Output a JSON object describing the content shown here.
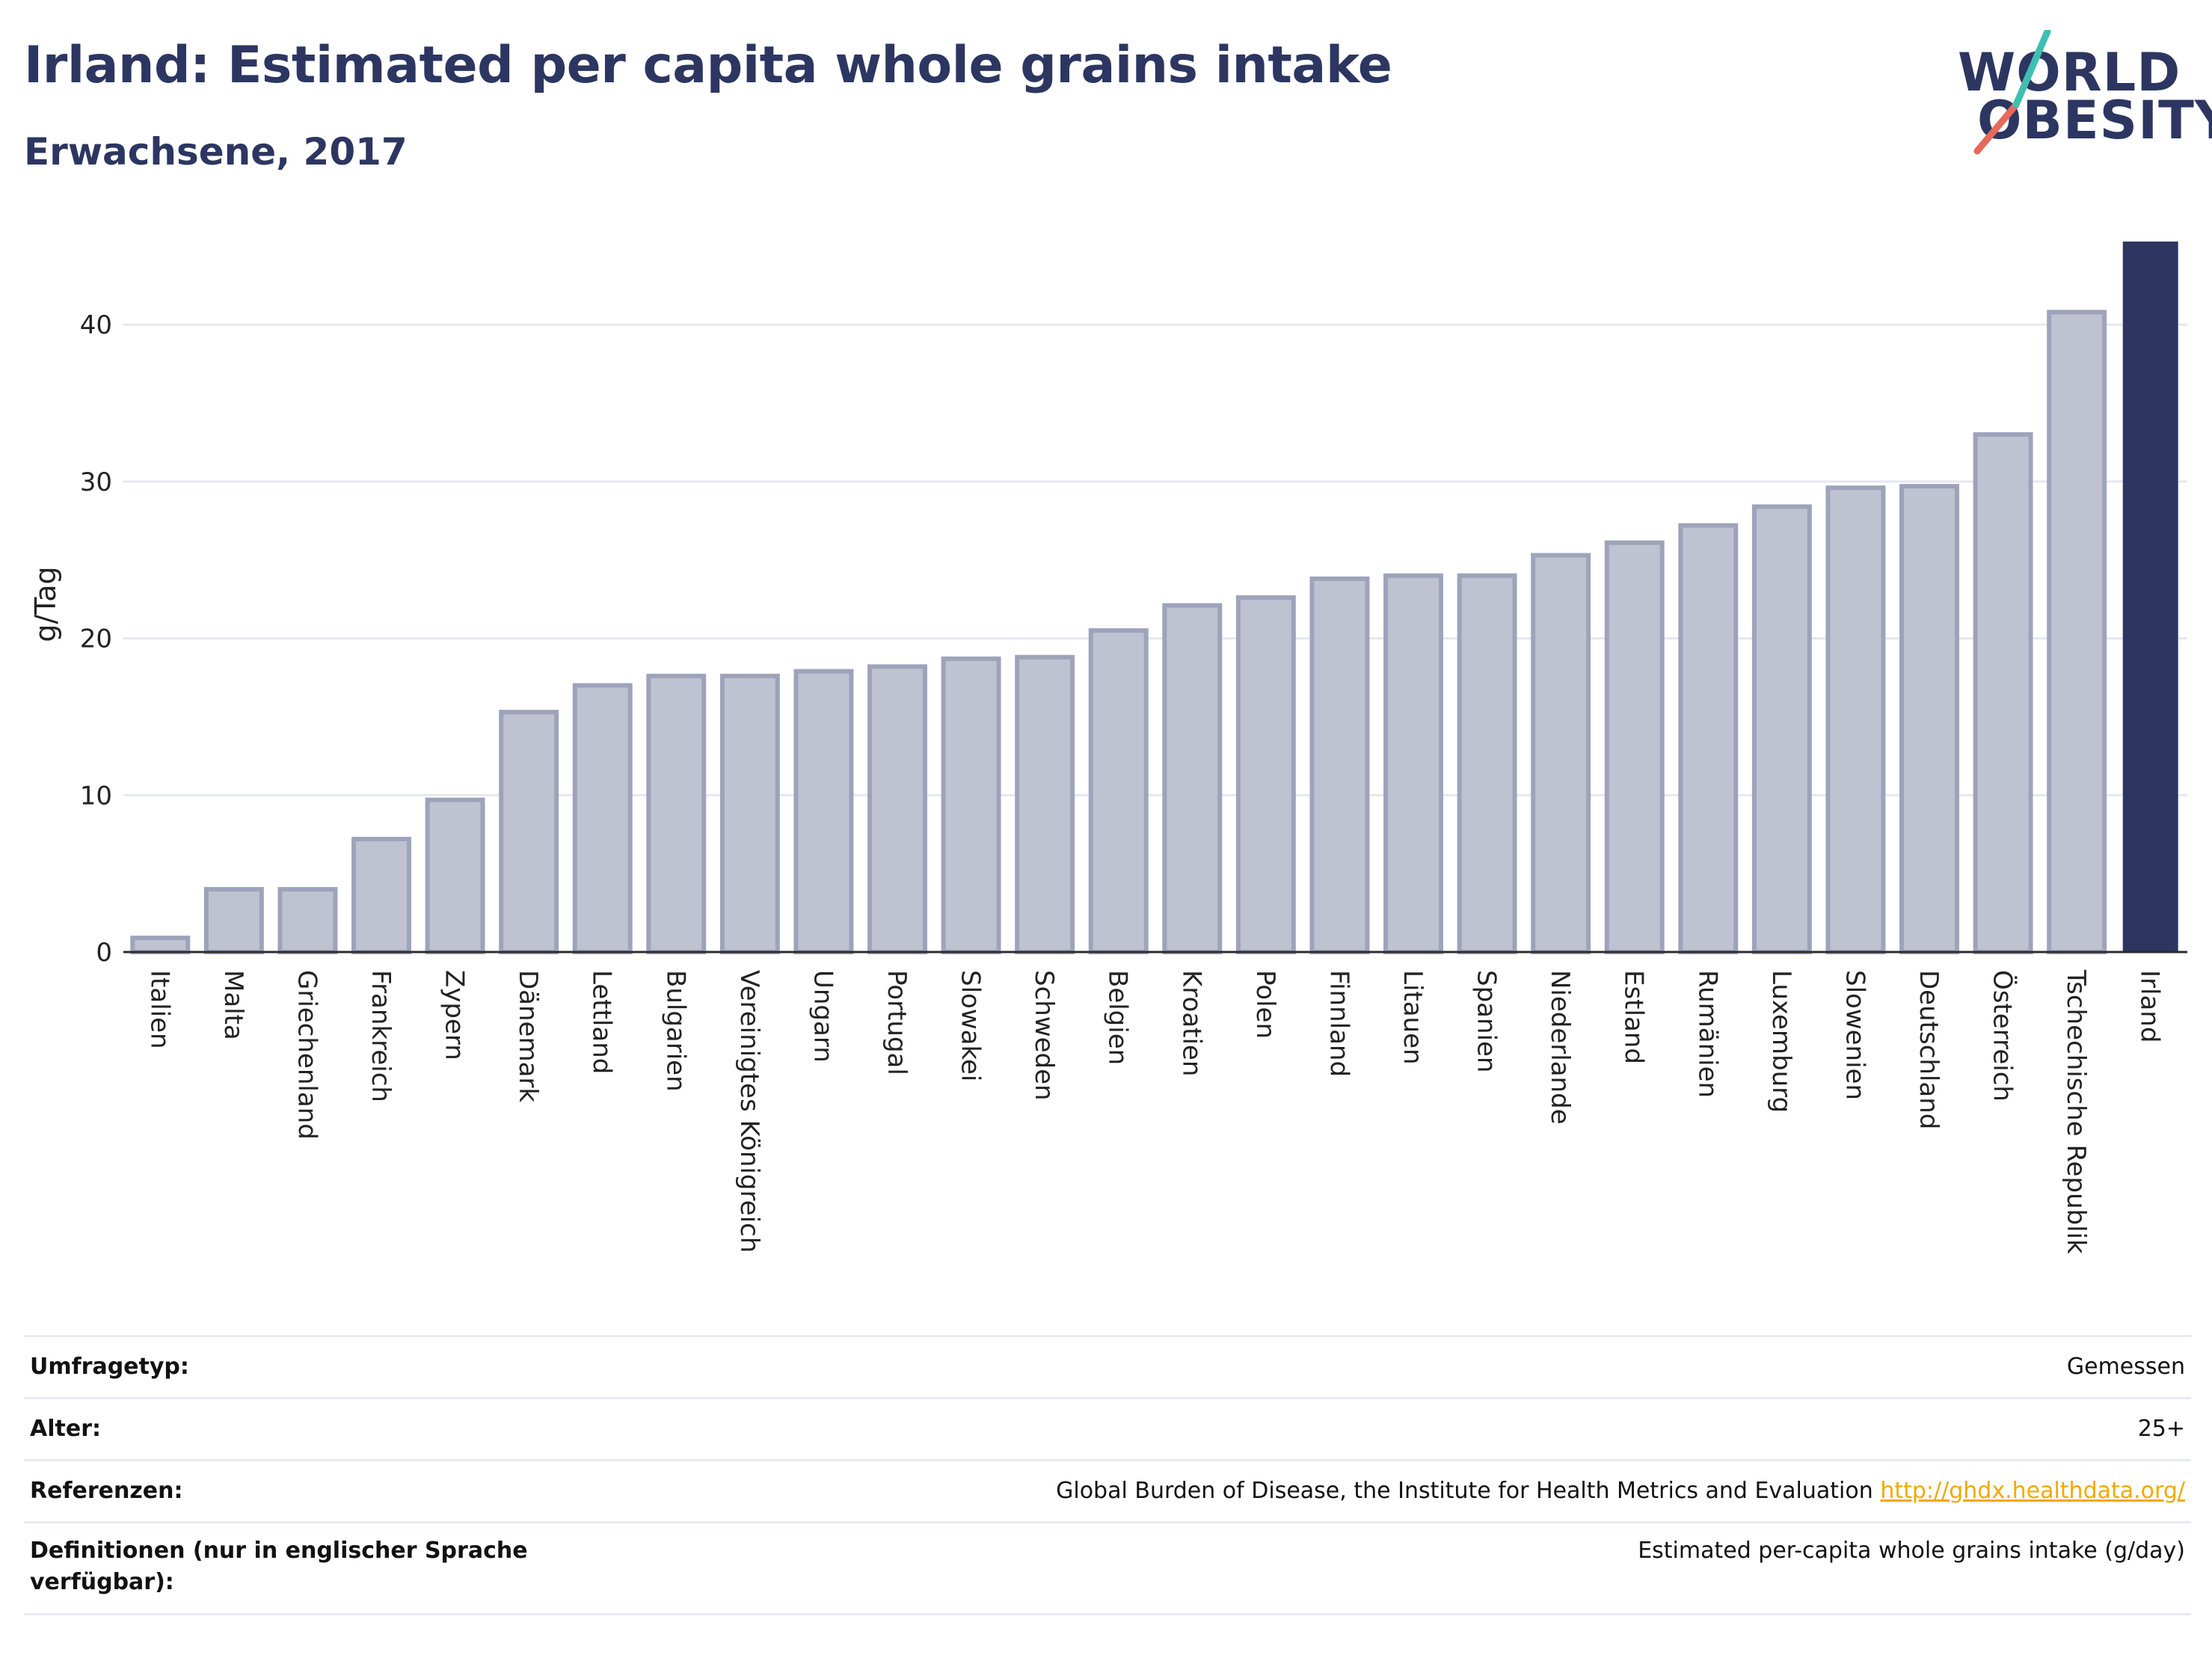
{
  "header": {
    "title": "Irland: Estimated per capita whole grains intake",
    "subtitle": "Erwachsene, 2017"
  },
  "logo": {
    "line1": "WORLD",
    "line2": "OBESITY"
  },
  "chart_data": {
    "type": "bar",
    "categories": [
      "Italien",
      "Malta",
      "Griechenland",
      "Frankreich",
      "Zypern",
      "Dänemark",
      "Lettland",
      "Bulgarien",
      "Vereinigtes Königreich",
      "Ungarn",
      "Portugal",
      "Slowakei",
      "Schweden",
      "Belgien",
      "Kroatien",
      "Polen",
      "Finnland",
      "Litauen",
      "Spanien",
      "Niederlande",
      "Estland",
      "Rumänien",
      "Luxemburg",
      "Slowenien",
      "Deutschland",
      "Österreich",
      "Tschechische Republik",
      "Irland"
    ],
    "values": [
      0.9,
      4.0,
      4.0,
      7.2,
      9.7,
      15.3,
      17.0,
      17.6,
      17.6,
      17.9,
      18.2,
      18.7,
      18.8,
      20.5,
      22.1,
      22.6,
      23.8,
      24.0,
      24.0,
      25.3,
      26.1,
      27.2,
      28.4,
      29.6,
      29.7,
      33.0,
      40.8,
      45.3
    ],
    "highlight": "Irland",
    "ylabel": "g/Tag",
    "xlabel": "",
    "ylim": [
      0,
      45.3
    ],
    "yticks": [
      0,
      10,
      20,
      30,
      40
    ],
    "grid": true,
    "colors": {
      "bar": "#bfc2d0",
      "bar_border": "#9ea3bb",
      "highlight": "#2c3661",
      "grid": "#e6e8ef",
      "axis": "#2c2c2c"
    }
  },
  "info": {
    "rows": [
      {
        "label": "Umfragetyp:",
        "value": "Gemessen"
      },
      {
        "label": "Alter:",
        "value": "25+"
      },
      {
        "label": "Referenzen:",
        "value": "Global Burden of Disease, the Institute for Health Metrics and Evaluation",
        "link": "http://ghdx.healthdata.org/"
      },
      {
        "label": "Definitionen (nur in englischer Sprache verfügbar):",
        "value": "Estimated per-capita whole grains intake (g/day)"
      }
    ]
  }
}
